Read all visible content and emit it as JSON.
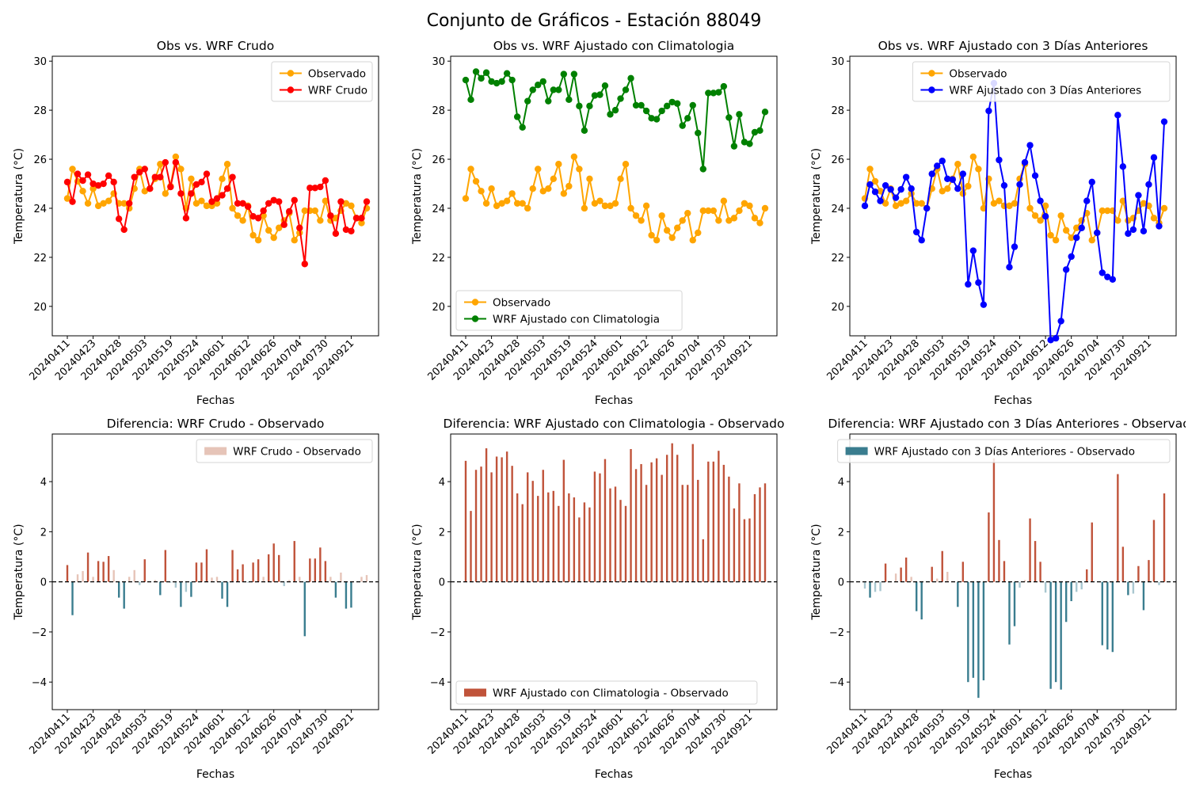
{
  "figure": {
    "suptitle": "Conjunto de Gráficos - Estación 88049"
  },
  "colors": {
    "observado": "#FFA500",
    "wrf_crudo": "#FF0000",
    "wrf_clim": "#008000",
    "wrf_3d": "#0000FF",
    "diff_pos": "#C0533A",
    "diff_neg": "#3A7D8F",
    "diff_pos_light": "#E6C4B8",
    "diff_neg_light": "#A9C7D0"
  },
  "chart_data": [
    {
      "type": "line",
      "title": "Obs vs. WRF Crudo",
      "xlabel": "Fechas",
      "ylabel": "Temperatura (°C)",
      "ylim": [
        18.8,
        30.2
      ],
      "yticks": [
        20,
        22,
        24,
        26,
        28,
        30
      ],
      "xticklabels": [
        "20240411",
        "20240423",
        "20240428",
        "20240503",
        "20240519",
        "20240524",
        "20240601",
        "20240612",
        "20240626",
        "20240704",
        "20240730",
        "20240921"
      ],
      "legend_position": "upper right",
      "series": [
        {
          "name": "Observado",
          "values": [
            24.4,
            25.6,
            25.1,
            24.7,
            24.2,
            24.8,
            24.1,
            24.2,
            24.3,
            24.6,
            24.2,
            24.2,
            24.0,
            24.8,
            25.6,
            24.7,
            24.8,
            25.2,
            25.8,
            24.6,
            24.9,
            26.1,
            25.6,
            24.0,
            25.2,
            24.2,
            24.3,
            24.1,
            24.1,
            24.2,
            25.2,
            25.8,
            24.0,
            23.7,
            23.5,
            24.1,
            22.9,
            22.7,
            23.7,
            23.1,
            22.8,
            23.2,
            23.5,
            23.8,
            22.7,
            23.0,
            23.9,
            23.9,
            23.9,
            23.5,
            24.3,
            23.5,
            23.6,
            23.9,
            24.2,
            24.1,
            23.6,
            23.4,
            24.0
          ]
        },
        {
          "name": "WRF Crudo",
          "values": [
            25.07,
            24.27,
            25.4,
            25.13,
            25.37,
            25.0,
            24.93,
            25.0,
            25.33,
            25.07,
            23.57,
            23.13,
            24.2,
            25.27,
            25.47,
            25.6,
            24.8,
            25.27,
            25.27,
            25.87,
            24.87,
            25.87,
            24.6,
            23.6,
            24.6,
            24.97,
            25.07,
            25.4,
            24.27,
            24.4,
            24.53,
            24.8,
            25.27,
            24.2,
            24.2,
            24.07,
            23.67,
            23.6,
            23.9,
            24.2,
            24.33,
            24.27,
            23.33,
            23.87,
            24.33,
            23.2,
            21.73,
            24.83,
            24.83,
            24.87,
            25.13,
            23.7,
            22.97,
            24.27,
            23.13,
            23.07,
            23.6,
            23.6,
            24.27
          ]
        }
      ]
    },
    {
      "type": "line",
      "title": "Obs vs. WRF Ajustado con Climatologia",
      "xlabel": "Fechas",
      "ylabel": "Temperatura (°C)",
      "ylim": [
        18.8,
        30.2
      ],
      "yticks": [
        20,
        22,
        24,
        26,
        28,
        30
      ],
      "xticklabels": [
        "20240411",
        "20240423",
        "20240428",
        "20240503",
        "20240519",
        "20240524",
        "20240601",
        "20240612",
        "20240626",
        "20240704",
        "20240730",
        "20240921"
      ],
      "legend_position": "lower left",
      "series": [
        {
          "name": "Observado",
          "values": [
            24.4,
            25.6,
            25.1,
            24.7,
            24.2,
            24.8,
            24.1,
            24.2,
            24.3,
            24.6,
            24.2,
            24.2,
            24.0,
            24.8,
            25.6,
            24.7,
            24.8,
            25.2,
            25.8,
            24.6,
            24.9,
            26.1,
            25.6,
            24.0,
            25.2,
            24.2,
            24.3,
            24.1,
            24.1,
            24.2,
            25.2,
            25.8,
            24.0,
            23.7,
            23.5,
            24.1,
            22.9,
            22.7,
            23.7,
            23.1,
            22.8,
            23.2,
            23.5,
            23.8,
            22.7,
            23.0,
            23.9,
            23.9,
            23.9,
            23.5,
            24.3,
            23.5,
            23.6,
            23.9,
            24.2,
            24.1,
            23.6,
            23.4,
            24.0
          ]
        },
        {
          "name": "WRF Ajustado con Climatologia",
          "values": [
            29.23,
            28.43,
            29.57,
            29.3,
            29.53,
            29.17,
            29.1,
            29.17,
            29.5,
            29.23,
            27.73,
            27.3,
            28.37,
            28.83,
            29.03,
            29.17,
            28.37,
            28.83,
            28.83,
            29.47,
            28.43,
            29.47,
            28.17,
            27.17,
            28.17,
            28.6,
            28.63,
            29.0,
            27.83,
            28.0,
            28.47,
            28.83,
            29.3,
            28.2,
            28.2,
            27.97,
            27.67,
            27.63,
            27.97,
            28.17,
            28.33,
            28.27,
            27.37,
            27.67,
            28.2,
            27.07,
            25.6,
            28.7,
            28.7,
            28.73,
            28.97,
            27.7,
            26.53,
            27.83,
            26.7,
            26.63,
            27.1,
            27.17,
            27.93
          ]
        }
      ]
    },
    {
      "type": "line",
      "title": "Obs vs. WRF Ajustado con 3 Días Anteriores",
      "xlabel": "Fechas",
      "ylabel": "Temperatura (°C)",
      "ylim": [
        18.8,
        30.2
      ],
      "yticks": [
        20,
        22,
        24,
        26,
        28,
        30
      ],
      "xticklabels": [
        "20240411",
        "20240423",
        "20240428",
        "20240503",
        "20240519",
        "20240524",
        "20240601",
        "20240612",
        "20240626",
        "20240704",
        "20240730",
        "20240921"
      ],
      "legend_position": "upper right",
      "series": [
        {
          "name": "Observado",
          "values": [
            24.4,
            25.6,
            25.1,
            24.7,
            24.2,
            24.8,
            24.1,
            24.2,
            24.3,
            24.6,
            24.2,
            24.2,
            24.0,
            24.8,
            25.6,
            24.7,
            24.8,
            25.2,
            25.8,
            24.6,
            24.9,
            26.1,
            25.6,
            24.0,
            25.2,
            24.2,
            24.3,
            24.1,
            24.1,
            24.2,
            25.2,
            25.8,
            24.0,
            23.7,
            23.5,
            24.1,
            22.9,
            22.7,
            23.7,
            23.1,
            22.8,
            23.2,
            23.5,
            23.8,
            22.7,
            23.0,
            23.9,
            23.9,
            23.9,
            23.5,
            24.3,
            23.5,
            23.6,
            23.9,
            24.2,
            24.1,
            23.6,
            23.4,
            24.0
          ]
        },
        {
          "name": "WRF Ajustado con 3 Días Anteriores",
          "values": [
            24.1,
            24.97,
            24.67,
            24.3,
            24.93,
            24.77,
            24.43,
            24.77,
            25.27,
            24.8,
            23.03,
            22.7,
            24.0,
            25.4,
            25.73,
            25.93,
            25.2,
            25.17,
            24.8,
            25.4,
            20.9,
            22.27,
            20.97,
            20.07,
            27.97,
            29.1,
            25.97,
            24.93,
            21.6,
            22.43,
            24.97,
            25.87,
            26.57,
            25.33,
            24.3,
            23.67,
            18.63,
            18.7,
            19.4,
            21.5,
            22.03,
            22.8,
            23.2,
            24.3,
            25.07,
            23.0,
            21.37,
            21.2,
            21.1,
            27.8,
            25.7,
            22.97,
            23.13,
            24.53,
            23.07,
            24.97,
            26.07,
            23.27,
            27.53
          ]
        }
      ]
    },
    {
      "type": "bar",
      "title": "Diferencia: WRF Crudo - Observado",
      "xlabel": "Fechas",
      "ylabel": "Temperatura (°C)",
      "ylim": [
        -5.1,
        5.9
      ],
      "yticks": [
        -4,
        -2,
        0,
        2,
        4
      ],
      "xticklabels": [
        "20240411",
        "20240423",
        "20240428",
        "20240503",
        "20240519",
        "20240524",
        "20240601",
        "20240612",
        "20240626",
        "20240704",
        "20240730",
        "20240921"
      ],
      "legend_position": "upper right",
      "series": [
        {
          "name": "WRF Crudo - Observado",
          "values": [
            0.67,
            -1.33,
            0.3,
            0.43,
            1.17,
            0.2,
            0.83,
            0.8,
            1.03,
            0.47,
            -0.63,
            -1.07,
            0.2,
            0.47,
            -0.13,
            0.9,
            0.0,
            0.07,
            -0.53,
            1.27,
            -0.03,
            -0.23,
            -1.0,
            -0.4,
            -0.6,
            0.77,
            0.77,
            1.3,
            0.17,
            0.2,
            -0.67,
            -1.0,
            1.27,
            0.5,
            0.7,
            -0.03,
            0.77,
            0.9,
            0.2,
            1.1,
            1.53,
            1.07,
            -0.17,
            0.07,
            1.63,
            0.2,
            -2.17,
            0.93,
            0.93,
            1.37,
            0.83,
            0.2,
            -0.63,
            0.37,
            -1.07,
            -1.03,
            0.0,
            0.2,
            0.27
          ]
        }
      ]
    },
    {
      "type": "bar",
      "title": "Diferencia: WRF Ajustado con Climatologia - Observado",
      "xlabel": "Fechas",
      "ylabel": "Temperatura (°C)",
      "ylim": [
        -5.1,
        5.9
      ],
      "yticks": [
        -4,
        -2,
        0,
        2,
        4
      ],
      "xticklabels": [
        "20240411",
        "20240423",
        "20240428",
        "20240503",
        "20240519",
        "20240524",
        "20240601",
        "20240612",
        "20240626",
        "20240704",
        "20240730",
        "20240921"
      ],
      "legend_position": "lower left",
      "series": [
        {
          "name": "WRF Ajustado con Climatologia - Observado",
          "values": [
            4.83,
            2.83,
            4.47,
            4.6,
            5.33,
            4.37,
            5.0,
            4.97,
            5.2,
            4.63,
            3.53,
            3.1,
            4.37,
            4.03,
            3.43,
            4.47,
            3.57,
            3.63,
            3.03,
            4.87,
            3.53,
            3.37,
            2.57,
            3.17,
            2.97,
            4.4,
            4.33,
            4.9,
            3.73,
            3.8,
            3.27,
            3.03,
            5.3,
            4.5,
            4.7,
            3.87,
            4.77,
            4.93,
            4.27,
            5.07,
            5.53,
            5.07,
            3.87,
            3.87,
            5.5,
            4.07,
            1.7,
            4.8,
            4.8,
            5.23,
            4.67,
            4.2,
            2.93,
            3.93,
            2.5,
            2.53,
            3.5,
            3.77,
            3.93
          ]
        }
      ]
    },
    {
      "type": "bar",
      "title": "Diferencia: WRF Ajustado con 3 Días Anteriores - Observado",
      "xlabel": "Fechas",
      "ylabel": "Temperatura (°C)",
      "ylim": [
        -5.1,
        5.9
      ],
      "yticks": [
        -4,
        -2,
        0,
        2,
        4
      ],
      "xticklabels": [
        "20240411",
        "20240423",
        "20240428",
        "20240503",
        "20240519",
        "20240524",
        "20240601",
        "20240612",
        "20240626",
        "20240704",
        "20240730",
        "20240921"
      ],
      "legend_position": "upper right",
      "series": [
        {
          "name": "WRF Ajustado con 3 Días Anteriores - Observado",
          "values": [
            -0.27,
            -0.63,
            -0.4,
            -0.37,
            0.73,
            0.03,
            0.33,
            0.57,
            0.97,
            0.2,
            -1.17,
            -1.5,
            0.0,
            0.6,
            0.13,
            1.23,
            0.4,
            0.03,
            -1.0,
            0.8,
            -4.0,
            -3.83,
            -4.63,
            -3.93,
            2.77,
            4.93,
            1.67,
            0.83,
            -2.5,
            -1.77,
            -0.23,
            0.07,
            2.53,
            1.63,
            0.8,
            -0.43,
            -4.27,
            -4.0,
            -4.3,
            -1.6,
            -0.77,
            -0.4,
            -0.3,
            0.5,
            2.37,
            0.0,
            -2.53,
            -2.7,
            -2.8,
            4.3,
            1.4,
            -0.53,
            -0.47,
            0.63,
            -1.13,
            0.87,
            2.47,
            -0.13,
            3.53
          ]
        }
      ]
    }
  ]
}
